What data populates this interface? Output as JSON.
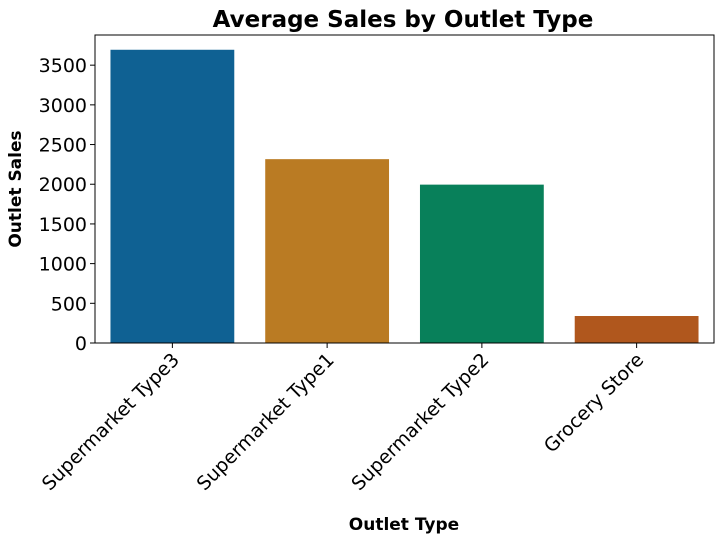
{
  "chart_data": {
    "type": "bar",
    "title": "Average Sales by Outlet Type",
    "xlabel": "Outlet Type",
    "ylabel": "Outlet Sales",
    "categories": [
      "Supermarket Type3",
      "Supermarket Type1",
      "Supermarket Type2",
      "Grocery Store"
    ],
    "values": [
      3694,
      2316,
      1995,
      340
    ],
    "colors": [
      "#0f6193",
      "#ba7b23",
      "#08805a",
      "#b0571d"
    ],
    "ylim": [
      0,
      3880
    ],
    "yticks": [
      0,
      500,
      1000,
      1500,
      2000,
      2500,
      3000,
      3500
    ],
    "grid": false,
    "legend": "none"
  }
}
